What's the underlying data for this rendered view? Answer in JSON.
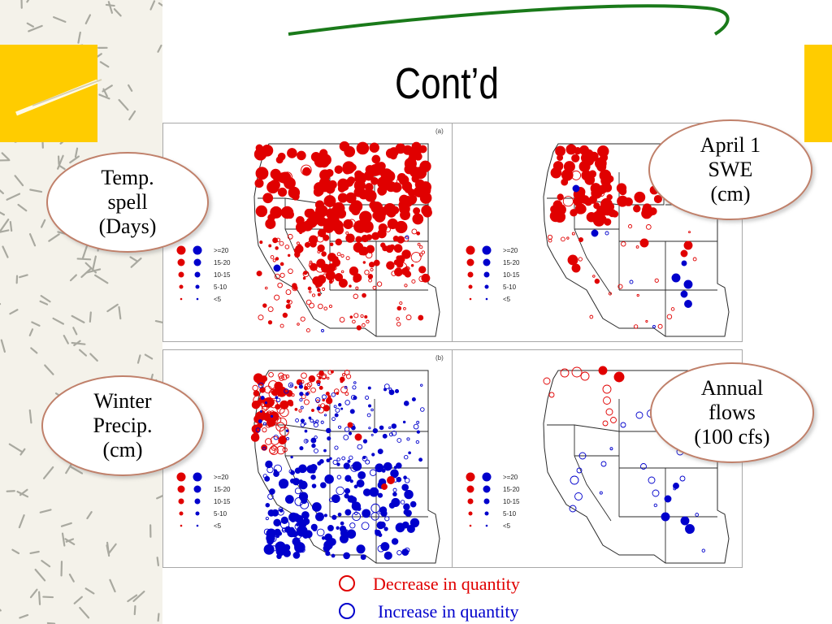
{
  "slide": {
    "title": "Cont’d",
    "colors": {
      "accent_yellow": "#ffcc00",
      "swoosh_green": "#1a7a1a",
      "decrease": "#e00000",
      "increase": "#0000cc"
    }
  },
  "callouts": {
    "temp_spell": [
      "Temp.",
      "spell",
      "(Days)"
    ],
    "april_swe": [
      "April 1",
      "SWE",
      "(cm)"
    ],
    "winter_precip": [
      "Winter",
      "Precip.",
      "(cm)"
    ],
    "annual_flows": [
      "Annual",
      "flows",
      "(100 cfs)"
    ]
  },
  "panel_tags": {
    "top": "(a)",
    "bottom": "(b)"
  },
  "map_legend": {
    "labels": [
      ">=20",
      "15-20",
      "10-15",
      "5-10",
      "<5"
    ],
    "colors": [
      "#e00000",
      "#0000cc"
    ]
  },
  "footer_legend": {
    "decrease": "Decrease in quantity",
    "increase": "Increase in quantity"
  }
}
